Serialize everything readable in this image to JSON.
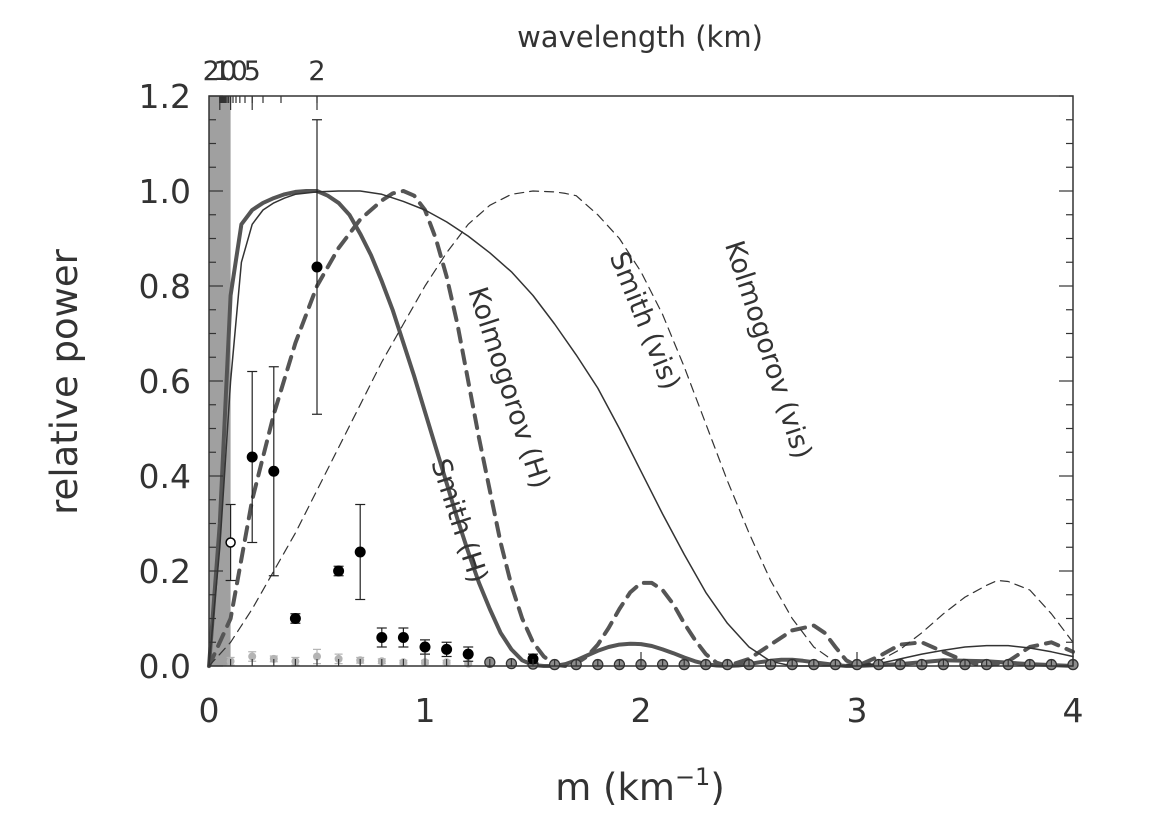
{
  "chart_data": {
    "type": "line",
    "xlabel": "m (km",
    "xlabel_sup": "−1",
    "xlabel_close": ")",
    "ylabel": "relative power",
    "top_axis_label": "wavelength (km)",
    "xlim": [
      0,
      4
    ],
    "ylim": [
      0,
      1.2
    ],
    "x_ticks": [
      0,
      1,
      2,
      3,
      4
    ],
    "x_tick_labels": [
      "0",
      "1",
      "2",
      "3",
      "4"
    ],
    "y_ticks": [
      0,
      0.2,
      0.4,
      0.6,
      0.8,
      1.0,
      1.2
    ],
    "y_tick_labels": [
      "0.0",
      "0.2",
      "0.4",
      "0.6",
      "0.8",
      "1.0",
      "1.2"
    ],
    "top_ticks": [
      {
        "m": 0.05,
        "label": "20"
      },
      {
        "m": 0.1,
        "label": "10"
      },
      {
        "m": 0.2,
        "label": "5"
      },
      {
        "m": 0.5,
        "label": "2"
      }
    ],
    "top_axis_mode": "reciprocal",
    "shaded_band": [
      0,
      0.1
    ],
    "series": [
      {
        "name": "Smith (H)",
        "style": "thick-solid",
        "x": [
          0.0,
          0.05,
          0.1,
          0.15,
          0.2,
          0.25,
          0.3,
          0.35,
          0.4,
          0.45,
          0.5,
          0.55,
          0.6,
          0.65,
          0.7,
          0.75,
          0.8,
          0.85,
          0.9,
          0.95,
          1.0,
          1.05,
          1.1,
          1.15,
          1.2,
          1.25,
          1.3,
          1.35,
          1.4,
          1.45,
          1.5,
          1.55,
          1.6,
          1.65,
          1.7,
          1.75,
          1.8,
          1.85,
          1.9,
          1.95,
          2.0,
          2.05,
          2.1,
          2.15,
          2.2,
          2.25,
          2.3,
          2.35,
          2.4,
          2.45,
          2.5,
          2.55,
          2.6,
          2.65,
          2.7,
          2.75,
          2.8,
          2.85,
          2.9,
          2.95,
          3.0,
          3.2,
          3.4,
          3.6,
          3.8,
          4.0
        ],
        "y": [
          0.0,
          0.3,
          0.78,
          0.93,
          0.96,
          0.975,
          0.985,
          0.993,
          0.998,
          1.0,
          1.0,
          0.99,
          0.975,
          0.95,
          0.91,
          0.865,
          0.81,
          0.75,
          0.68,
          0.61,
          0.535,
          0.46,
          0.385,
          0.31,
          0.24,
          0.175,
          0.12,
          0.07,
          0.035,
          0.012,
          0.002,
          0.0,
          0.0,
          0.004,
          0.012,
          0.022,
          0.032,
          0.04,
          0.045,
          0.047,
          0.046,
          0.042,
          0.035,
          0.027,
          0.018,
          0.01,
          0.004,
          0.001,
          0.0,
          0.001,
          0.004,
          0.008,
          0.011,
          0.013,
          0.013,
          0.011,
          0.008,
          0.005,
          0.002,
          0.0,
          0.0,
          0.004,
          0.012,
          0.01,
          0.004,
          0.0
        ]
      },
      {
        "name": "Kolmogorov (H)",
        "style": "thick-dashed",
        "x": [
          0.0,
          0.1,
          0.2,
          0.3,
          0.4,
          0.5,
          0.6,
          0.7,
          0.8,
          0.85,
          0.9,
          0.95,
          1.0,
          1.05,
          1.1,
          1.15,
          1.2,
          1.25,
          1.3,
          1.35,
          1.4,
          1.45,
          1.5,
          1.55,
          1.6,
          1.65,
          1.7,
          1.75,
          1.8,
          1.85,
          1.9,
          1.95,
          2.0,
          2.05,
          2.1,
          2.15,
          2.2,
          2.25,
          2.3,
          2.35,
          2.4,
          2.5,
          2.6,
          2.7,
          2.8,
          2.85,
          2.9,
          2.95,
          3.0,
          3.1,
          3.2,
          3.3,
          3.4,
          3.5,
          3.6,
          3.7,
          3.8,
          3.9,
          4.0
        ],
        "y": [
          0.0,
          0.1,
          0.35,
          0.53,
          0.68,
          0.8,
          0.88,
          0.94,
          0.98,
          0.995,
          1.0,
          0.99,
          0.96,
          0.9,
          0.82,
          0.72,
          0.6,
          0.48,
          0.37,
          0.26,
          0.17,
          0.1,
          0.05,
          0.02,
          0.003,
          0.0,
          0.005,
          0.02,
          0.045,
          0.08,
          0.12,
          0.155,
          0.175,
          0.175,
          0.16,
          0.13,
          0.09,
          0.055,
          0.025,
          0.007,
          0.0,
          0.015,
          0.045,
          0.075,
          0.085,
          0.07,
          0.04,
          0.012,
          0.0,
          0.02,
          0.045,
          0.05,
          0.03,
          0.01,
          0.0,
          0.01,
          0.04,
          0.05,
          0.03
        ]
      },
      {
        "name": "Smith (vis)",
        "style": "thin-solid",
        "x": [
          0.0,
          0.05,
          0.1,
          0.15,
          0.2,
          0.25,
          0.3,
          0.35,
          0.4,
          0.5,
          0.6,
          0.7,
          0.8,
          0.9,
          1.0,
          1.1,
          1.2,
          1.3,
          1.4,
          1.5,
          1.6,
          1.7,
          1.8,
          1.9,
          2.0,
          2.1,
          2.2,
          2.3,
          2.4,
          2.5,
          2.6,
          2.7,
          2.8,
          2.9,
          3.0,
          3.1,
          3.2,
          3.3,
          3.4,
          3.5,
          3.6,
          3.7,
          3.8,
          3.9,
          4.0
        ],
        "y": [
          0.0,
          0.25,
          0.6,
          0.85,
          0.93,
          0.96,
          0.975,
          0.985,
          0.993,
          0.998,
          1.0,
          1.0,
          0.993,
          0.978,
          0.96,
          0.935,
          0.905,
          0.87,
          0.83,
          0.78,
          0.72,
          0.655,
          0.585,
          0.5,
          0.41,
          0.32,
          0.235,
          0.155,
          0.09,
          0.04,
          0.01,
          0.0,
          0.0,
          0.0,
          0.0,
          0.005,
          0.015,
          0.025,
          0.033,
          0.04,
          0.043,
          0.043,
          0.038,
          0.03,
          0.02
        ]
      },
      {
        "name": "Kolmogorov (vis)",
        "style": "thin-dashed",
        "x": [
          0.0,
          0.1,
          0.2,
          0.3,
          0.4,
          0.5,
          0.6,
          0.7,
          0.8,
          0.9,
          1.0,
          1.1,
          1.2,
          1.3,
          1.4,
          1.5,
          1.6,
          1.65,
          1.7,
          1.75,
          1.8,
          1.9,
          2.0,
          2.1,
          2.2,
          2.3,
          2.4,
          2.5,
          2.6,
          2.7,
          2.8,
          2.9,
          3.0,
          3.1,
          3.2,
          3.3,
          3.4,
          3.5,
          3.6,
          3.65,
          3.7,
          3.8,
          3.9,
          4.0
        ],
        "y": [
          0.0,
          0.05,
          0.12,
          0.2,
          0.28,
          0.37,
          0.46,
          0.55,
          0.64,
          0.72,
          0.8,
          0.87,
          0.93,
          0.97,
          0.993,
          1.0,
          0.998,
          0.995,
          0.99,
          0.97,
          0.95,
          0.9,
          0.83,
          0.74,
          0.63,
          0.51,
          0.39,
          0.28,
          0.18,
          0.1,
          0.04,
          0.008,
          0.0,
          0.01,
          0.035,
          0.07,
          0.11,
          0.145,
          0.17,
          0.18,
          0.178,
          0.16,
          0.11,
          0.05
        ]
      }
    ],
    "curve_labels": [
      {
        "text": "Smith (H)",
        "x": 1.12,
        "y": 0.3,
        "angle": 72
      },
      {
        "text": "Kolmogorov (H)",
        "x": 1.35,
        "y": 0.58,
        "angle": 72
      },
      {
        "text": "Smith (vis)",
        "x": 1.98,
        "y": 0.72,
        "angle": 68
      },
      {
        "text": "Kolmogorov (vis)",
        "x": 2.55,
        "y": 0.66,
        "angle": 72
      }
    ],
    "points_black": {
      "x": [
        0.2,
        0.3,
        0.4,
        0.5,
        0.6,
        0.7,
        0.8,
        0.9,
        1.0,
        1.1,
        1.2,
        1.5
      ],
      "y": [
        0.44,
        0.41,
        0.1,
        0.84,
        0.2,
        0.24,
        0.06,
        0.06,
        0.04,
        0.035,
        0.025,
        0.015
      ],
      "err": [
        0.18,
        0.22,
        0.01,
        0.31,
        0.01,
        0.1,
        0.02,
        0.02,
        0.015,
        0.015,
        0.015,
        0.01
      ]
    },
    "points_open": {
      "x": [
        0.1
      ],
      "y": [
        0.26
      ],
      "err": [
        0.08
      ]
    },
    "points_gray": {
      "x": [
        0.1,
        0.2,
        0.3,
        0.4,
        0.5,
        0.6,
        0.7,
        0.8,
        0.9,
        1.0,
        1.1,
        1.2
      ],
      "y": [
        0.01,
        0.02,
        0.015,
        0.01,
        0.02,
        0.015,
        0.012,
        0.01,
        0.008,
        0.008,
        0.008,
        0.005
      ],
      "err": [
        0.008,
        0.01,
        0.006,
        0.008,
        0.015,
        0.01,
        0.006,
        0.005,
        0.004,
        0.004,
        0.004,
        0.003
      ]
    },
    "points_ring": {
      "x": [
        1.3,
        1.4,
        1.5,
        1.6,
        1.7,
        1.8,
        1.9,
        2.0,
        2.1,
        2.2,
        2.3,
        2.4,
        2.5,
        2.6,
        2.7,
        2.8,
        2.9,
        3.0,
        3.1,
        3.2,
        3.3,
        3.4,
        3.5,
        3.6,
        3.7,
        3.8,
        3.9,
        4.0
      ],
      "y": [
        0.008,
        0.005,
        0.004,
        0.003,
        0.003,
        0.003,
        0.003,
        0.003,
        0.003,
        0.003,
        0.003,
        0.003,
        0.003,
        0.003,
        0.003,
        0.003,
        0.003,
        0.003,
        0.003,
        0.003,
        0.003,
        0.003,
        0.003,
        0.003,
        0.003,
        0.003,
        0.003,
        0.003
      ]
    },
    "colors": {
      "thick_line": "#555555",
      "thin_line": "#333333",
      "band": "#a0a0a0",
      "gray_points": "#b4b4b4",
      "ring_fill": "#8c8c8c",
      "axis": "#333333"
    },
    "grid": false
  }
}
